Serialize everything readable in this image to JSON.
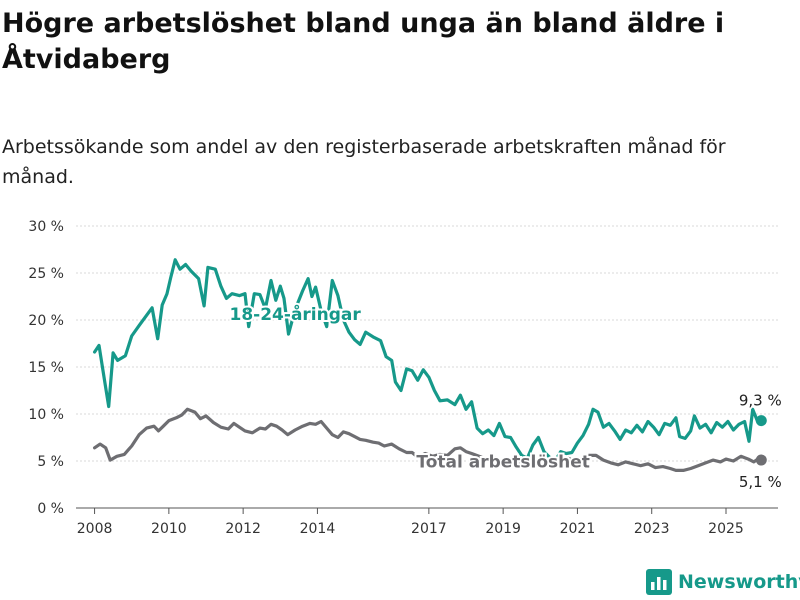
{
  "title": "Högre arbetslöshet bland unga än bland äldre i Åtvidaberg",
  "subtitle": "Arbetssökande som andel av den registerbaserade arbetskraften månad för månad.",
  "brand": {
    "name": "Newsworthy",
    "icon": "bar-chart-logo-icon",
    "color": "#16998a"
  },
  "chart_data": {
    "type": "line",
    "title": "Högre arbetslöshet bland unga än bland äldre i Åtvidaberg",
    "subtitle": "Arbetssökande som andel av den registerbaserade arbetskraften månad för månad.",
    "xlabel": "",
    "ylabel": "",
    "xlim": [
      2007.5,
      2026.4
    ],
    "ylim": [
      0,
      30
    ],
    "y_ticks": [
      0,
      5,
      10,
      15,
      20,
      25,
      30
    ],
    "y_tick_labels": [
      "0 %",
      "5 %",
      "10 %",
      "15 %",
      "20 %",
      "25 %",
      "30 %"
    ],
    "x_ticks": [
      2008,
      2010,
      2012,
      2014,
      2017,
      2019,
      2021,
      2023,
      2025
    ],
    "x_tick_labels": [
      "2008",
      "2010",
      "2012",
      "2014",
      "2017",
      "2019",
      "2021",
      "2023",
      "2025"
    ],
    "grid": "horizontal",
    "legend": "inline labels",
    "series": [
      {
        "name": "18-24-åringar",
        "color": "#16998a",
        "end_label": "9,3 %",
        "points": [
          [
            2008.0,
            16.6
          ],
          [
            2008.12,
            17.3
          ],
          [
            2008.25,
            14.0
          ],
          [
            2008.38,
            10.8
          ],
          [
            2008.5,
            16.5
          ],
          [
            2008.62,
            15.7
          ],
          [
            2008.83,
            16.2
          ],
          [
            2009.0,
            18.3
          ],
          [
            2009.2,
            19.4
          ],
          [
            2009.4,
            20.5
          ],
          [
            2009.55,
            21.3
          ],
          [
            2009.7,
            18.0
          ],
          [
            2009.82,
            21.6
          ],
          [
            2009.95,
            22.8
          ],
          [
            2010.05,
            24.5
          ],
          [
            2010.17,
            26.4
          ],
          [
            2010.3,
            25.4
          ],
          [
            2010.45,
            25.9
          ],
          [
            2010.6,
            25.2
          ],
          [
            2010.8,
            24.4
          ],
          [
            2010.95,
            21.5
          ],
          [
            2011.05,
            25.6
          ],
          [
            2011.25,
            25.4
          ],
          [
            2011.4,
            23.6
          ],
          [
            2011.55,
            22.3
          ],
          [
            2011.7,
            22.8
          ],
          [
            2011.9,
            22.6
          ],
          [
            2012.05,
            22.8
          ],
          [
            2012.15,
            19.3
          ],
          [
            2012.3,
            22.8
          ],
          [
            2012.45,
            22.7
          ],
          [
            2012.6,
            21.2
          ],
          [
            2012.75,
            24.2
          ],
          [
            2012.88,
            22.1
          ],
          [
            2013.0,
            23.6
          ],
          [
            2013.1,
            22.3
          ],
          [
            2013.22,
            18.5
          ],
          [
            2013.4,
            21.1
          ],
          [
            2013.6,
            23.1
          ],
          [
            2013.75,
            24.4
          ],
          [
            2013.85,
            22.5
          ],
          [
            2013.95,
            23.5
          ],
          [
            2014.1,
            21.0
          ],
          [
            2014.25,
            19.3
          ],
          [
            2014.4,
            24.2
          ],
          [
            2014.55,
            22.6
          ],
          [
            2014.7,
            20.0
          ],
          [
            2014.85,
            18.7
          ],
          [
            2015.0,
            17.9
          ],
          [
            2015.15,
            17.4
          ],
          [
            2015.3,
            18.7
          ],
          [
            2015.5,
            18.2
          ],
          [
            2015.7,
            17.8
          ],
          [
            2015.85,
            16.1
          ],
          [
            2016.0,
            15.7
          ],
          [
            2016.1,
            13.4
          ],
          [
            2016.25,
            12.5
          ],
          [
            2016.4,
            14.8
          ],
          [
            2016.55,
            14.6
          ],
          [
            2016.7,
            13.6
          ],
          [
            2016.85,
            14.7
          ],
          [
            2017.0,
            13.9
          ],
          [
            2017.15,
            12.5
          ],
          [
            2017.3,
            11.4
          ],
          [
            2017.5,
            11.5
          ],
          [
            2017.7,
            11.0
          ],
          [
            2017.85,
            12.0
          ],
          [
            2018.0,
            10.5
          ],
          [
            2018.15,
            11.3
          ],
          [
            2018.3,
            8.5
          ],
          [
            2018.45,
            7.9
          ],
          [
            2018.6,
            8.3
          ],
          [
            2018.75,
            7.7
          ],
          [
            2018.9,
            9.0
          ],
          [
            2019.05,
            7.6
          ],
          [
            2019.2,
            7.5
          ],
          [
            2019.35,
            6.5
          ],
          [
            2019.5,
            5.6
          ],
          [
            2019.65,
            5.3
          ],
          [
            2019.8,
            6.7
          ],
          [
            2019.95,
            7.5
          ],
          [
            2020.1,
            6.0
          ],
          [
            2020.25,
            5.4
          ],
          [
            2020.4,
            5.0
          ],
          [
            2020.55,
            6.0
          ],
          [
            2020.7,
            5.8
          ],
          [
            2020.85,
            5.9
          ],
          [
            2021.0,
            6.9
          ],
          [
            2021.15,
            7.7
          ],
          [
            2021.3,
            8.9
          ],
          [
            2021.42,
            10.5
          ],
          [
            2021.55,
            10.2
          ],
          [
            2021.7,
            8.6
          ],
          [
            2021.85,
            9.0
          ],
          [
            2022.0,
            8.2
          ],
          [
            2022.15,
            7.3
          ],
          [
            2022.3,
            8.3
          ],
          [
            2022.45,
            8.0
          ],
          [
            2022.6,
            8.8
          ],
          [
            2022.75,
            8.1
          ],
          [
            2022.9,
            9.2
          ],
          [
            2023.05,
            8.6
          ],
          [
            2023.2,
            7.8
          ],
          [
            2023.35,
            9.0
          ],
          [
            2023.5,
            8.8
          ],
          [
            2023.65,
            9.6
          ],
          [
            2023.75,
            7.6
          ],
          [
            2023.9,
            7.4
          ],
          [
            2024.05,
            8.2
          ],
          [
            2024.15,
            9.8
          ],
          [
            2024.3,
            8.5
          ],
          [
            2024.45,
            8.9
          ],
          [
            2024.6,
            8.0
          ],
          [
            2024.75,
            9.1
          ],
          [
            2024.9,
            8.6
          ],
          [
            2025.05,
            9.2
          ],
          [
            2025.2,
            8.3
          ],
          [
            2025.35,
            8.9
          ],
          [
            2025.5,
            9.2
          ],
          [
            2025.62,
            7.1
          ],
          [
            2025.72,
            10.5
          ],
          [
            2025.85,
            9.2
          ],
          [
            2025.95,
            9.3
          ]
        ]
      },
      {
        "name": "Total arbetslöshet",
        "color": "#6e6e72",
        "end_label": "5,1 %",
        "points": [
          [
            2008.0,
            6.4
          ],
          [
            2008.15,
            6.8
          ],
          [
            2008.3,
            6.4
          ],
          [
            2008.42,
            5.1
          ],
          [
            2008.6,
            5.5
          ],
          [
            2008.8,
            5.7
          ],
          [
            2009.0,
            6.6
          ],
          [
            2009.2,
            7.8
          ],
          [
            2009.4,
            8.5
          ],
          [
            2009.6,
            8.7
          ],
          [
            2009.72,
            8.2
          ],
          [
            2009.85,
            8.7
          ],
          [
            2010.0,
            9.3
          ],
          [
            2010.2,
            9.6
          ],
          [
            2010.35,
            9.9
          ],
          [
            2010.5,
            10.5
          ],
          [
            2010.7,
            10.2
          ],
          [
            2010.85,
            9.5
          ],
          [
            2011.0,
            9.8
          ],
          [
            2011.2,
            9.1
          ],
          [
            2011.4,
            8.6
          ],
          [
            2011.6,
            8.4
          ],
          [
            2011.75,
            9.0
          ],
          [
            2011.9,
            8.6
          ],
          [
            2012.05,
            8.2
          ],
          [
            2012.25,
            8.0
          ],
          [
            2012.45,
            8.5
          ],
          [
            2012.6,
            8.4
          ],
          [
            2012.75,
            8.9
          ],
          [
            2012.9,
            8.7
          ],
          [
            2013.05,
            8.3
          ],
          [
            2013.2,
            7.8
          ],
          [
            2013.4,
            8.3
          ],
          [
            2013.6,
            8.7
          ],
          [
            2013.8,
            9.0
          ],
          [
            2013.95,
            8.9
          ],
          [
            2014.1,
            9.2
          ],
          [
            2014.25,
            8.5
          ],
          [
            2014.4,
            7.8
          ],
          [
            2014.55,
            7.5
          ],
          [
            2014.7,
            8.1
          ],
          [
            2014.85,
            7.9
          ],
          [
            2015.0,
            7.6
          ],
          [
            2015.15,
            7.3
          ],
          [
            2015.3,
            7.2
          ],
          [
            2015.5,
            7.0
          ],
          [
            2015.65,
            6.9
          ],
          [
            2015.8,
            6.6
          ],
          [
            2016.0,
            6.8
          ],
          [
            2016.2,
            6.3
          ],
          [
            2016.4,
            5.9
          ],
          [
            2016.55,
            5.9
          ],
          [
            2016.7,
            5.4
          ],
          [
            2016.9,
            5.8
          ],
          [
            2017.1,
            5.5
          ],
          [
            2017.3,
            5.7
          ],
          [
            2017.5,
            5.6
          ],
          [
            2017.7,
            6.3
          ],
          [
            2017.85,
            6.4
          ],
          [
            2018.0,
            6.0
          ],
          [
            2018.15,
            5.8
          ],
          [
            2018.35,
            5.5
          ],
          [
            2018.55,
            5.2
          ],
          [
            2018.75,
            5.4
          ],
          [
            2018.95,
            5.0
          ],
          [
            2019.15,
            4.9
          ],
          [
            2019.35,
            4.6
          ],
          [
            2019.55,
            4.8
          ],
          [
            2019.75,
            5.1
          ],
          [
            2019.95,
            5.0
          ],
          [
            2020.15,
            4.9
          ],
          [
            2020.35,
            5.2
          ],
          [
            2020.55,
            5.0
          ],
          [
            2020.75,
            5.3
          ],
          [
            2020.95,
            5.0
          ],
          [
            2021.15,
            5.3
          ],
          [
            2021.3,
            5.6
          ],
          [
            2021.5,
            5.6
          ],
          [
            2021.7,
            5.1
          ],
          [
            2021.9,
            4.8
          ],
          [
            2022.1,
            4.6
          ],
          [
            2022.3,
            4.9
          ],
          [
            2022.5,
            4.7
          ],
          [
            2022.7,
            4.5
          ],
          [
            2022.9,
            4.7
          ],
          [
            2023.1,
            4.3
          ],
          [
            2023.3,
            4.4
          ],
          [
            2023.5,
            4.2
          ],
          [
            2023.65,
            4.0
          ],
          [
            2023.85,
            4.0
          ],
          [
            2024.05,
            4.2
          ],
          [
            2024.25,
            4.5
          ],
          [
            2024.45,
            4.8
          ],
          [
            2024.65,
            5.1
          ],
          [
            2024.85,
            4.9
          ],
          [
            2025.0,
            5.2
          ],
          [
            2025.2,
            5.0
          ],
          [
            2025.4,
            5.5
          ],
          [
            2025.6,
            5.2
          ],
          [
            2025.75,
            4.9
          ],
          [
            2025.85,
            5.2
          ],
          [
            2025.95,
            5.1
          ]
        ]
      }
    ],
    "annotations": [
      {
        "text": "18-24-åringar",
        "x": 2013.4,
        "y": 20.0,
        "series": "18-24-åringar"
      },
      {
        "text": "Total arbetslöshet",
        "x": 2019.0,
        "y": 4.3,
        "series": "Total arbetslöshet"
      }
    ]
  }
}
